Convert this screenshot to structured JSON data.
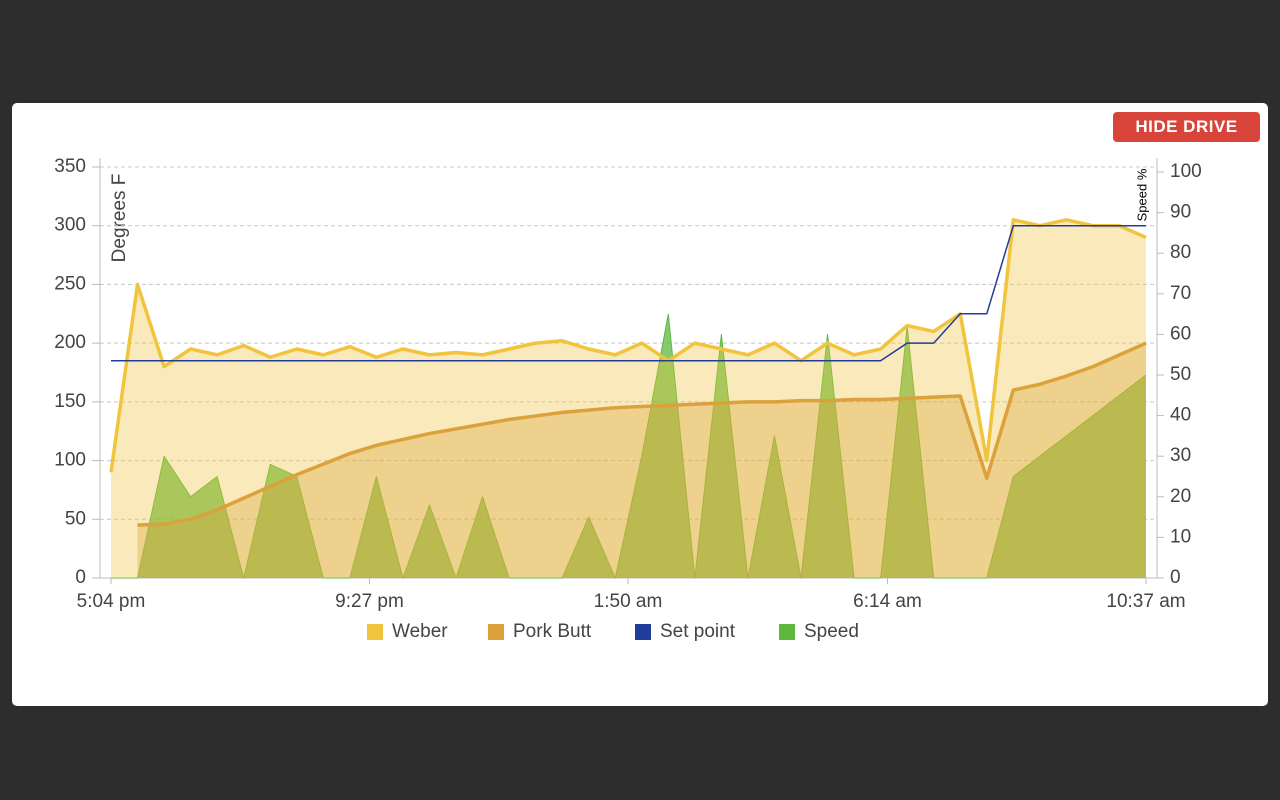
{
  "button": "HIDE DRIVE",
  "chart_data": {
    "type": "line",
    "y_label": "Degrees F",
    "y2_label": "Speed %",
    "x": [
      0,
      27,
      54,
      81,
      108,
      135,
      162,
      189,
      216,
      243,
      270,
      297,
      324,
      351,
      378,
      405,
      432,
      459,
      486,
      513,
      540,
      567,
      594,
      621,
      648,
      675,
      702,
      729,
      756,
      783,
      810,
      837,
      864,
      891,
      918,
      945,
      972,
      999,
      1026,
      1053
    ],
    "xlim": [
      0,
      1053
    ],
    "xticks": [
      {
        "value": 0,
        "label": "5:04 pm"
      },
      {
        "value": 263,
        "label": "9:27 pm"
      },
      {
        "value": 526,
        "label": "1:50 am"
      },
      {
        "value": 790,
        "label": "6:14 am"
      },
      {
        "value": 1053,
        "label": "10:37 am"
      }
    ],
    "ylim": [
      0,
      350
    ],
    "yticks": [
      0,
      50,
      100,
      150,
      200,
      250,
      300,
      350
    ],
    "y2lim": [
      0,
      100
    ],
    "y2ticks": [
      0,
      10,
      20,
      30,
      40,
      50,
      60,
      70,
      80,
      90,
      100
    ],
    "grid": true,
    "series": [
      {
        "name": "Weber",
        "color": "#f0c43c",
        "area": true,
        "values": [
          90,
          250,
          180,
          195,
          190,
          198,
          188,
          195,
          190,
          197,
          188,
          195,
          190,
          192,
          190,
          195,
          200,
          202,
          195,
          190,
          200,
          185,
          200,
          195,
          190,
          200,
          185,
          200,
          190,
          195,
          215,
          210,
          225,
          100,
          305,
          300,
          305,
          300,
          300,
          290
        ]
      },
      {
        "name": "Pork Butt",
        "color": "#dba23c",
        "area": true,
        "values": [
          null,
          45,
          46,
          50,
          58,
          68,
          78,
          88,
          97,
          106,
          113,
          118,
          123,
          127,
          131,
          135,
          138,
          141,
          143,
          145,
          146,
          147,
          148,
          149,
          150,
          150,
          151,
          151,
          152,
          152,
          153,
          154,
          155,
          85,
          160,
          165,
          172,
          180,
          190,
          200
        ]
      },
      {
        "name": "Set point",
        "color": "#1f3d99",
        "area": false,
        "values": [
          185,
          185,
          185,
          185,
          185,
          185,
          185,
          185,
          185,
          185,
          185,
          185,
          185,
          185,
          185,
          185,
          185,
          185,
          185,
          185,
          185,
          185,
          185,
          185,
          185,
          185,
          185,
          185,
          185,
          185,
          200,
          200,
          225,
          225,
          300,
          300,
          300,
          300,
          300,
          300
        ]
      },
      {
        "name": "Speed",
        "color": "#5cb83c",
        "area": true,
        "axis": "y2",
        "values": [
          0,
          0,
          30,
          20,
          25,
          0,
          28,
          25,
          0,
          0,
          25,
          0,
          18,
          0,
          20,
          0,
          0,
          0,
          15,
          0,
          30,
          65,
          0,
          60,
          0,
          35,
          0,
          60,
          0,
          0,
          62,
          0,
          0,
          0,
          25,
          30,
          35,
          40,
          45,
          50
        ]
      }
    ]
  }
}
